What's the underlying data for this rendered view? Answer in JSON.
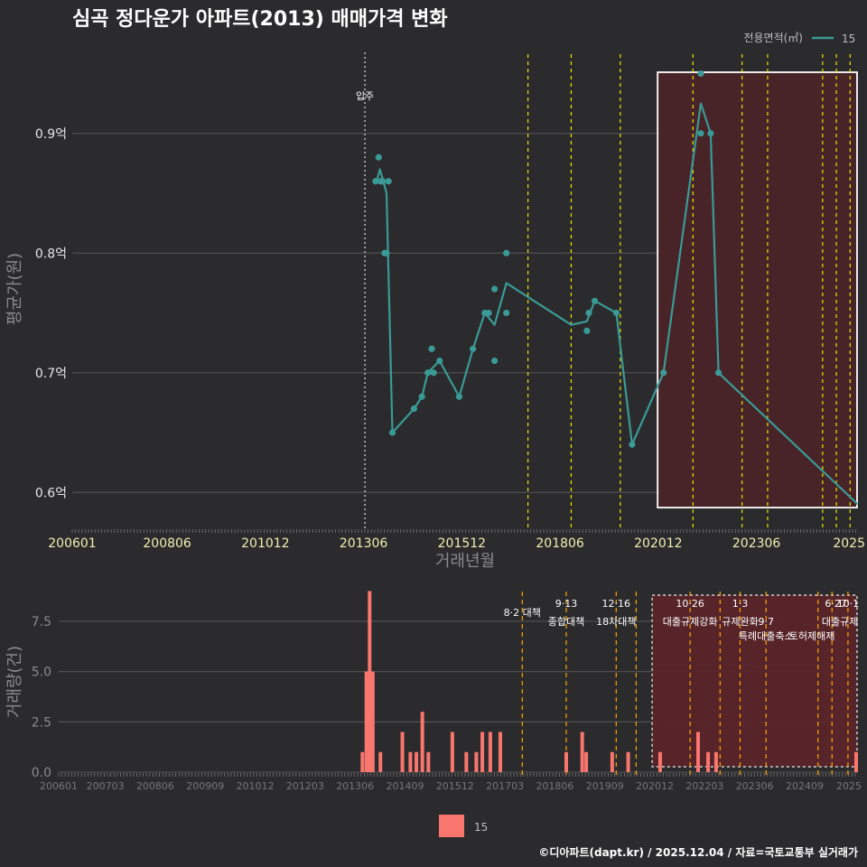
{
  "title": "심곡 정다운가 아파트(2013) 매매가격 변화",
  "colors": {
    "background": "#2b2b2d",
    "line": "#3a9a96",
    "bar": "#f8766d",
    "highlight_fill": "#4a2327",
    "grid": "#4e4e50",
    "policy_yellow": "#e6e600",
    "policy_orange": "#ffa500"
  },
  "legend": {
    "title": "전용면적(㎡)",
    "label": "15"
  },
  "bar_legend": {
    "label": "15"
  },
  "footer": "©디아파트(dapt.kr) / 2025.12.04 / 자료=국토교통부 실거래가",
  "chart_data": [
    {
      "type": "line",
      "title": "심곡 정다운가 아파트(2013) 매매가격 변화",
      "xlabel": "거래년월",
      "ylabel": "평균가(원)",
      "x_tick_labels": [
        "200601",
        "200806",
        "201012",
        "201306",
        "201512",
        "201806",
        "202012",
        "202306",
        "2025"
      ],
      "y_ticks": [
        0.6,
        0.7,
        0.8,
        0.9
      ],
      "y_tick_labels": [
        "0.6억",
        "0.7억",
        "0.8억",
        "0.9억"
      ],
      "xlim": [
        2006.0,
        2026.0
      ],
      "ylim": [
        0.57,
        0.97
      ],
      "marker": {
        "x": 2013.45,
        "label": "입주"
      },
      "policy_lines": [
        2017.6,
        2018.7,
        2019.95,
        2021.8,
        2023.05,
        2023.7,
        2025.1,
        2025.45,
        2025.8
      ],
      "highlight_range": [
        2020.9,
        2026.0
      ],
      "series": [
        {
          "name": "15",
          "line": [
            [
              2013.75,
              0.86
            ],
            [
              2013.83,
              0.87
            ],
            [
              2013.92,
              0.86
            ],
            [
              2014.0,
              0.85
            ],
            [
              2014.15,
              0.65
            ],
            [
              2014.7,
              0.67
            ],
            [
              2014.9,
              0.68
            ],
            [
              2015.05,
              0.7
            ],
            [
              2015.2,
              0.705
            ],
            [
              2015.35,
              0.71
            ],
            [
              2015.85,
              0.68
            ],
            [
              2016.2,
              0.72
            ],
            [
              2016.5,
              0.75
            ],
            [
              2016.75,
              0.74
            ],
            [
              2017.05,
              0.775
            ],
            [
              2018.7,
              0.74
            ],
            [
              2019.1,
              0.743
            ],
            [
              2019.3,
              0.76
            ],
            [
              2019.85,
              0.75
            ],
            [
              2020.25,
              0.64
            ],
            [
              2021.05,
              0.7
            ],
            [
              2022.0,
              0.925
            ],
            [
              2022.25,
              0.9
            ],
            [
              2022.45,
              0.7
            ],
            [
              2026.0,
              0.59
            ]
          ],
          "points": [
            [
              2013.72,
              0.86
            ],
            [
              2013.8,
              0.88
            ],
            [
              2013.85,
              0.86
            ],
            [
              2013.9,
              0.86
            ],
            [
              2013.95,
              0.8
            ],
            [
              2014.0,
              0.8
            ],
            [
              2014.05,
              0.86
            ],
            [
              2014.15,
              0.65
            ],
            [
              2014.7,
              0.67
            ],
            [
              2014.9,
              0.68
            ],
            [
              2015.05,
              0.7
            ],
            [
              2015.15,
              0.72
            ],
            [
              2015.2,
              0.7
            ],
            [
              2015.35,
              0.71
            ],
            [
              2015.85,
              0.68
            ],
            [
              2016.2,
              0.72
            ],
            [
              2016.5,
              0.75
            ],
            [
              2016.6,
              0.75
            ],
            [
              2016.75,
              0.77
            ],
            [
              2016.75,
              0.71
            ],
            [
              2017.05,
              0.8
            ],
            [
              2017.05,
              0.75
            ],
            [
              2019.1,
              0.735
            ],
            [
              2019.15,
              0.75
            ],
            [
              2019.3,
              0.76
            ],
            [
              2019.85,
              0.75
            ],
            [
              2020.25,
              0.64
            ],
            [
              2021.05,
              0.7
            ],
            [
              2022.0,
              0.95
            ],
            [
              2022.0,
              0.9
            ],
            [
              2022.25,
              0.9
            ],
            [
              2022.45,
              0.7
            ]
          ]
        }
      ]
    },
    {
      "type": "bar",
      "xlabel": "",
      "ylabel": "거래량(건)",
      "x_tick_labels": [
        "200601",
        "200703",
        "200806",
        "200909",
        "201012",
        "201203",
        "201306",
        "201409",
        "201512",
        "201703",
        "201806",
        "201909",
        "202012",
        "202203",
        "202306",
        "202409",
        "2025"
      ],
      "y_ticks": [
        0.0,
        2.5,
        5.0,
        7.5
      ],
      "y_tick_labels": [
        "0.0",
        "2.5",
        "5.0",
        "7.5"
      ],
      "xlim": [
        2006.0,
        2026.0
      ],
      "ylim": [
        0,
        9.2
      ],
      "highlight_range": [
        2020.85,
        2026.0
      ],
      "policy_lines": [
        2017.6,
        2018.7,
        2019.95,
        2020.45,
        2021.8,
        2022.55,
        2023.05,
        2023.7,
        2025.0,
        2025.35,
        2025.75
      ],
      "annotations": [
        {
          "x": 2017.6,
          "label": "8·2 대책",
          "row": 1
        },
        {
          "x": 2018.7,
          "label": "9·13",
          "row": 0
        },
        {
          "x": 2018.7,
          "label": "종합대책",
          "row": 2
        },
        {
          "x": 2019.95,
          "label": "12·16",
          "row": 0
        },
        {
          "x": 2019.95,
          "label": "18차대책",
          "row": 2
        },
        {
          "x": 2021.8,
          "label": "10·26",
          "row": 0
        },
        {
          "x": 2021.8,
          "label": "대출규제강화",
          "row": 2
        },
        {
          "x": 2023.05,
          "label": "1·3",
          "row": 0
        },
        {
          "x": 2023.05,
          "label": "규제완화",
          "row": 2
        },
        {
          "x": 2023.7,
          "label": "9·7",
          "row": 2
        },
        {
          "x": 2023.7,
          "label": "특례대출축소",
          "row": 3
        },
        {
          "x": 2024.85,
          "label": "토허제해제",
          "row": 3
        },
        {
          "x": 2025.45,
          "label": "6·27",
          "row": 0
        },
        {
          "x": 2025.75,
          "label": "10·1",
          "row": 0
        },
        {
          "x": 2025.55,
          "label": "대출규제",
          "row": 2
        }
      ],
      "series": [
        {
          "name": "15",
          "x": [
            2013.6,
            2013.7,
            2013.78,
            2013.86,
            2014.05,
            2014.6,
            2014.8,
            2014.95,
            2015.1,
            2015.25,
            2015.85,
            2016.2,
            2016.45,
            2016.6,
            2016.8,
            2017.05,
            2018.7,
            2019.1,
            2019.2,
            2019.85,
            2020.25,
            2021.05,
            2022.0,
            2022.25,
            2022.45,
            2026.0
          ],
          "values": [
            1,
            5,
            9,
            5,
            1,
            2,
            1,
            1,
            3,
            1,
            2,
            1,
            1,
            2,
            2,
            2,
            1,
            2,
            1,
            1,
            1,
            1,
            2,
            1,
            1,
            1
          ]
        }
      ]
    }
  ]
}
